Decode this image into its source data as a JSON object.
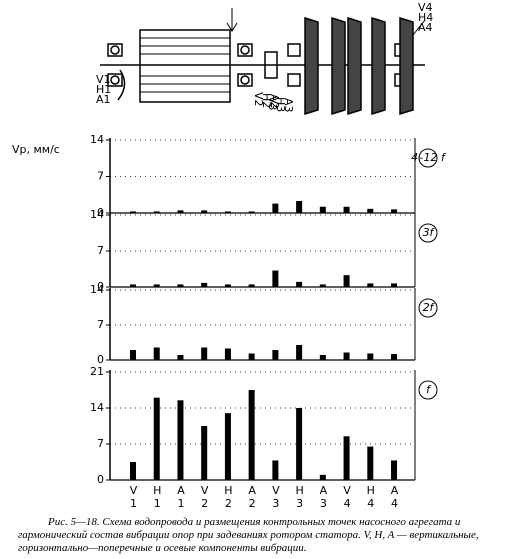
{
  "figure": {
    "diagram_points": [
      [
        "V1",
        "H1",
        "A1"
      ],
      [
        "V2",
        "H2",
        "A2"
      ],
      [
        "V3",
        "H3",
        "A3"
      ],
      [
        "V4",
        "H4",
        "A4"
      ]
    ],
    "y_label": "Vp, мм/с",
    "caption": "Рис. 5—18. Схема водопровода и размещения контрольных точек насосного агрегата и гармонический состав вибрации опор при задеваниях ротором статора. V, H, A — вертикальные, горизонтально—поперечные и осевые компоненты вибрации."
  },
  "chart_data": [
    {
      "type": "bar",
      "label": "4–12 f",
      "ylim": [
        0,
        14
      ],
      "yticks": [
        0,
        7,
        14
      ],
      "grid": true,
      "color": "#000000",
      "values": [
        0.3,
        0.3,
        0.5,
        0.5,
        0.3,
        0.3,
        1.8,
        2.3,
        1.2,
        1.2,
        0.8,
        0.7
      ]
    },
    {
      "type": "bar",
      "label": "3f",
      "ylim": [
        0,
        14
      ],
      "yticks": [
        0,
        7,
        14
      ],
      "grid": true,
      "color": "#000000",
      "values": [
        0.5,
        0.5,
        0.5,
        0.8,
        0.5,
        0.5,
        3.2,
        1.0,
        0.5,
        2.3,
        0.7,
        0.7
      ]
    },
    {
      "type": "bar",
      "label": "2f",
      "ylim": [
        0,
        14
      ],
      "yticks": [
        0,
        7,
        14
      ],
      "grid": true,
      "color": "#000000",
      "values": [
        2.0,
        2.5,
        1.0,
        2.5,
        2.3,
        1.3,
        2.0,
        3.0,
        1.0,
        1.5,
        1.3,
        1.2
      ]
    },
    {
      "type": "bar",
      "label": "f",
      "ylim": [
        0,
        21
      ],
      "yticks": [
        0,
        7,
        14,
        21
      ],
      "grid": true,
      "color": "#000000",
      "categories": [
        "V1",
        "H1",
        "A1",
        "V2",
        "H2",
        "A2",
        "V3",
        "H3",
        "A3",
        "V4",
        "H4",
        "A4"
      ],
      "values": [
        3.5,
        16,
        15.5,
        10.5,
        13,
        17.5,
        3.8,
        14,
        1.0,
        8.5,
        6.5,
        3.8
      ]
    }
  ]
}
